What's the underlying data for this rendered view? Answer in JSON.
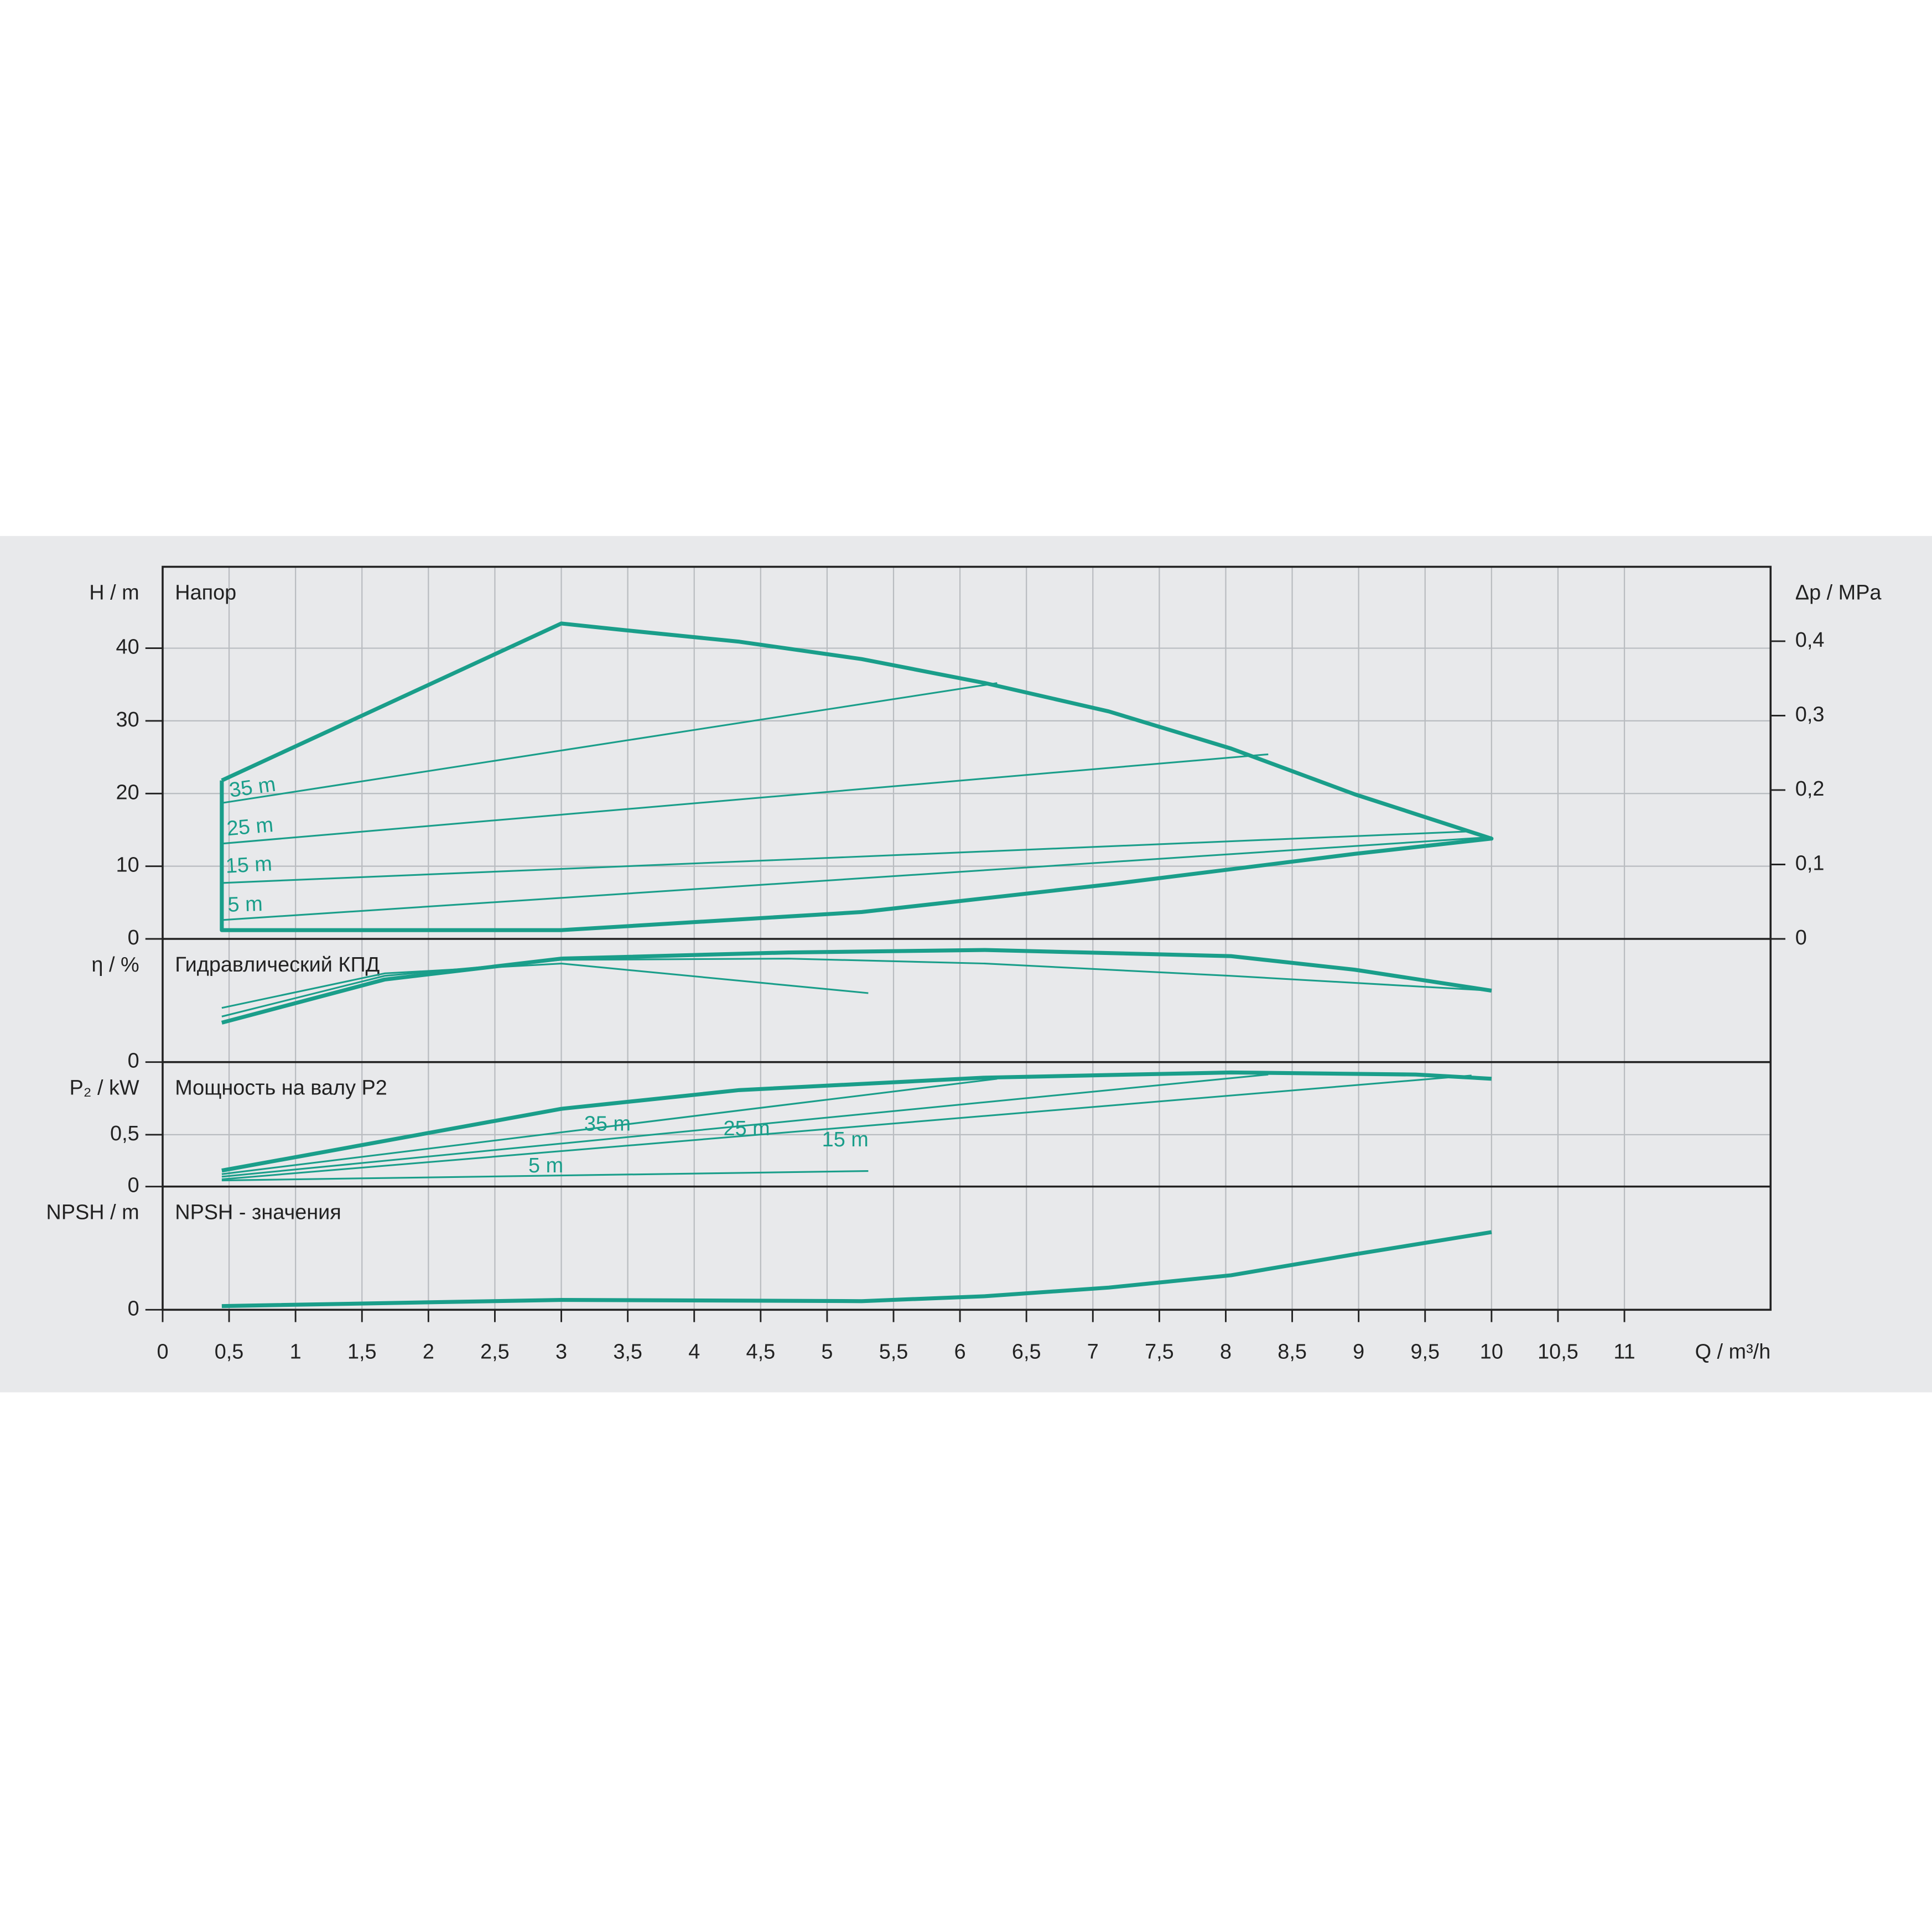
{
  "chart_data": [
    {
      "type": "line",
      "title": "Напор",
      "ylabel": "H / m",
      "y2label": "Δp / MPa",
      "xlim": [
        0,
        12.1
      ],
      "ylim": [
        0,
        51.2
      ],
      "yticks": [
        0,
        10,
        20,
        30,
        40
      ],
      "y2lim": [
        0,
        0.5
      ],
      "y2ticks": [
        0,
        {
          "value": 0.1,
          "label": "0,1"
        },
        {
          "value": 0.2,
          "label": "0,2"
        },
        {
          "value": 0.3,
          "label": "0,3"
        },
        {
          "value": 0.4,
          "label": "0,4"
        }
      ],
      "grid": true,
      "series": [
        {
          "color": "#1a9e8a",
          "x": [
            0.445,
            3,
            3.41,
            4.34,
            5.26,
            6.19,
            7.12,
            8.04,
            8.97,
            10,
            8.97,
            7.12,
            5.26,
            3,
            0.445,
            0.445
          ],
          "values": [
            21.8,
            43.4,
            42.6,
            40.9,
            38.5,
            35.2,
            31.3,
            26.2,
            19.9,
            13.8,
            11.7,
            7.5,
            3.7,
            1.2,
            1.2,
            21.8
          ]
        },
        {
          "name": "35 m",
          "color": "#1a9e8a",
          "x": [
            0.445,
            6.28
          ],
          "values": [
            18.7,
            35.2
          ]
        },
        {
          "name": "25 m",
          "color": "#1a9e8a",
          "x": [
            0.445,
            8.32
          ],
          "values": [
            13.1,
            25.4
          ]
        },
        {
          "name": "15 m",
          "color": "#1a9e8a",
          "x": [
            0.445,
            9.85
          ],
          "values": [
            7.7,
            14.8
          ]
        },
        {
          "name": "5 m",
          "color": "#1a9e8a",
          "x": [
            0.445,
            10
          ],
          "values": [
            2.6,
            14
          ]
        }
      ]
    },
    {
      "type": "line",
      "title": "Гидравлический КПД",
      "ylabel": "η / %",
      "xlim": [
        0,
        12.1
      ],
      "ylim": [
        0,
        100
      ],
      "yticks": [
        0
      ],
      "grid": true,
      "series": [
        {
          "color": "#1a9e8a",
          "x": [
            0.445,
            1.67,
            3,
            4.71,
            6.19,
            8.04,
            8.97,
            10
          ],
          "values": [
            32,
            67,
            84,
            89,
            91,
            86,
            75,
            58
          ]
        },
        {
          "color": "#1a9e8a",
          "x": [
            0.445,
            1.67,
            3,
            5.31
          ],
          "values": [
            44,
            72,
            80,
            56
          ]
        },
        {
          "color": "#1a9e8a",
          "x": [
            0.445,
            1.67,
            3,
            4.71,
            6.19,
            8.04,
            10
          ],
          "values": [
            37,
            70,
            83,
            84,
            80,
            70,
            58
          ]
        }
      ]
    },
    {
      "type": "line",
      "title": "Мощность на валу P2",
      "ylabel": "P₂ / kW",
      "xlim": [
        0,
        12.1
      ],
      "ylim": [
        0,
        1.2
      ],
      "yticks": [
        0,
        {
          "value": 0.5,
          "label": "0,5"
        }
      ],
      "grid": true,
      "series": [
        {
          "color": "#1a9e8a",
          "x": [
            0.445,
            3,
            4.34,
            6.19,
            8.04,
            9.43,
            10
          ],
          "values": [
            0.155,
            0.75,
            0.93,
            1.05,
            1.1,
            1.08,
            1.04
          ]
        },
        {
          "name": "35 m",
          "color": "#1a9e8a",
          "x": [
            0.445,
            6.28
          ],
          "values": [
            0.12,
            1.04
          ]
        },
        {
          "name": "25 m",
          "color": "#1a9e8a",
          "x": [
            0.445,
            8.32
          ],
          "values": [
            0.095,
            1.08
          ]
        },
        {
          "name": "15 m",
          "color": "#1a9e8a",
          "x": [
            0.445,
            9.85
          ],
          "values": [
            0.07,
            1.07
          ]
        },
        {
          "name": "5 m",
          "color": "#1a9e8a",
          "x": [
            0.445,
            5.31
          ],
          "values": [
            0.06,
            0.15
          ]
        }
      ]
    },
    {
      "type": "line",
      "title": "NPSH - значения",
      "ylabel": "NPSH / m",
      "xlabel": "Q / m³/h",
      "xlim": [
        0,
        12.1
      ],
      "ylim": [
        0,
        10
      ],
      "yticks": [
        0
      ],
      "grid": true,
      "xticks": [
        0,
        {
          "value": 0.5,
          "label": "0,5"
        },
        1,
        {
          "value": 1.5,
          "label": "1,5"
        },
        2,
        {
          "value": 2.5,
          "label": "2,5"
        },
        3,
        {
          "value": 3.5,
          "label": "3,5"
        },
        4,
        {
          "value": 4.5,
          "label": "4,5"
        },
        5,
        {
          "value": 5.5,
          "label": "5,5"
        },
        6,
        {
          "value": 6.5,
          "label": "6,5"
        },
        7,
        {
          "value": 7.5,
          "label": "7,5"
        },
        8,
        {
          "value": 8.5,
          "label": "8,5"
        },
        9,
        {
          "value": 9.5,
          "label": "9,5"
        },
        10,
        {
          "value": 10.5,
          "label": "10,5"
        },
        11
      ],
      "series": [
        {
          "color": "#1a9e8a",
          "x": [
            0.445,
            3,
            5.26,
            6.19,
            7.12,
            8.04,
            8.97,
            10
          ],
          "values": [
            0.3,
            0.8,
            0.7,
            1.1,
            1.8,
            2.8,
            4.5,
            6.3
          ]
        }
      ]
    }
  ]
}
